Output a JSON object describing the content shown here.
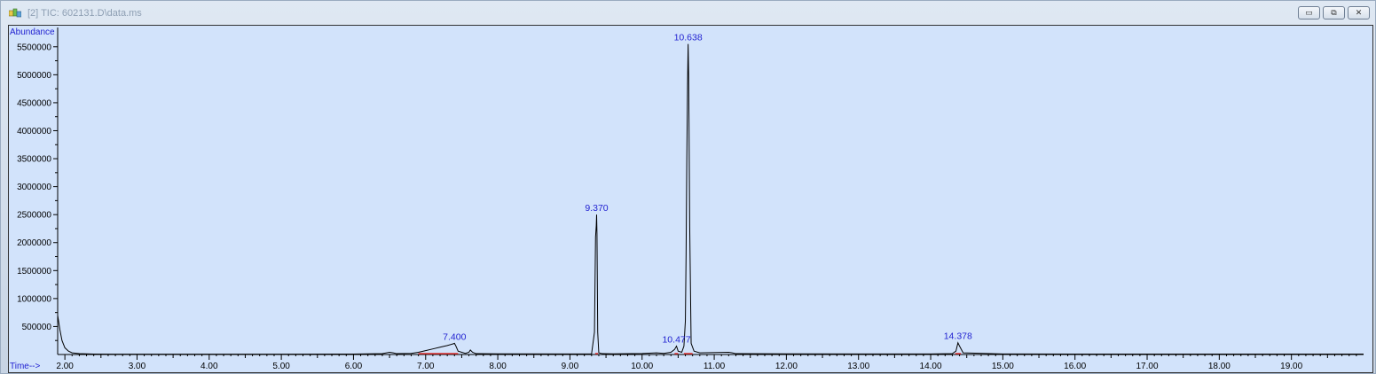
{
  "window": {
    "title": "[2] TIC: 602131.D\\data.ms",
    "app_icon": "chemstation-icon",
    "buttons": [
      {
        "name": "minimize-button",
        "glyph": "▭"
      },
      {
        "name": "restore-button",
        "glyph": "⧉"
      },
      {
        "name": "close-button",
        "glyph": "✕"
      }
    ]
  },
  "chart_data": {
    "type": "line",
    "title": "",
    "xlabel": "Time-->",
    "ylabel": "Abundance",
    "xlim": [
      1.9,
      20.0
    ],
    "ylim": [
      0,
      5750000
    ],
    "x_ticks": [
      "2.00",
      "3.00",
      "4.00",
      "5.00",
      "6.00",
      "7.00",
      "8.00",
      "9.00",
      "10.00",
      "11.00",
      "12.00",
      "13.00",
      "14.00",
      "15.00",
      "16.00",
      "17.00",
      "18.00",
      "19.00"
    ],
    "y_ticks": [
      "500000",
      "1000000",
      "1500000",
      "2000000",
      "2500000",
      "3000000",
      "3500000",
      "4000000",
      "4500000",
      "5000000",
      "5500000"
    ],
    "peaks": [
      {
        "label": "7.400",
        "rt": 7.4,
        "abundance": 200000
      },
      {
        "label": "9.370",
        "rt": 9.37,
        "abundance": 2500000
      },
      {
        "label": "10.477",
        "rt": 10.477,
        "abundance": 150000
      },
      {
        "label": "10.638",
        "rt": 10.638,
        "abundance": 5550000
      },
      {
        "label": "14.378",
        "rt": 14.378,
        "abundance": 210000
      }
    ],
    "series": [
      {
        "x": [
          1.9,
          1.93,
          1.96,
          2.0,
          2.05,
          2.1,
          2.2,
          2.4,
          2.8,
          3.0,
          4.0,
          5.0,
          6.0,
          6.4,
          6.5,
          6.55,
          6.6,
          6.8,
          6.9,
          7.0,
          7.1,
          7.2,
          7.3,
          7.38,
          7.4,
          7.42,
          7.45,
          7.55,
          7.6,
          7.62,
          7.65,
          7.7,
          8.0,
          9.0,
          9.3,
          9.34,
          9.355,
          9.365,
          9.37,
          9.375,
          9.385,
          9.4,
          9.45,
          9.6,
          10.0,
          10.2,
          10.3,
          10.4,
          10.45,
          10.477,
          10.5,
          10.55,
          10.58,
          10.6,
          10.61,
          10.62,
          10.63,
          10.638,
          10.645,
          10.65,
          10.66,
          10.68,
          10.72,
          10.8,
          11.2,
          11.25,
          11.3,
          12.0,
          13.0,
          14.0,
          14.3,
          14.35,
          14.378,
          14.4,
          14.45,
          15.0,
          16.0,
          17.0,
          18.0,
          19.0,
          20.0
        ],
        "y": [
          700000,
          450000,
          250000,
          120000,
          60000,
          30000,
          15000,
          8000,
          5000,
          5000,
          5000,
          5000,
          8000,
          15000,
          40000,
          30000,
          15000,
          20000,
          40000,
          70000,
          100000,
          130000,
          160000,
          190000,
          200000,
          150000,
          60000,
          20000,
          40000,
          80000,
          40000,
          15000,
          12000,
          10000,
          12000,
          400000,
          2100000,
          2300000,
          2500000,
          2150000,
          400000,
          30000,
          15000,
          12000,
          18000,
          30000,
          20000,
          40000,
          90000,
          150000,
          60000,
          40000,
          150000,
          600000,
          1800000,
          3500000,
          4800000,
          5550000,
          5000000,
          4200000,
          2300000,
          200000,
          60000,
          30000,
          40000,
          30000,
          15000,
          12000,
          10000,
          10000,
          15000,
          60000,
          210000,
          150000,
          30000,
          10000,
          8000,
          8000,
          8000,
          8000,
          8000
        ]
      }
    ],
    "baseline_segments": [
      [
        6.9,
        7.45
      ],
      [
        9.35,
        9.39
      ],
      [
        10.45,
        10.5
      ],
      [
        10.58,
        10.7
      ],
      [
        14.34,
        14.42
      ]
    ]
  }
}
